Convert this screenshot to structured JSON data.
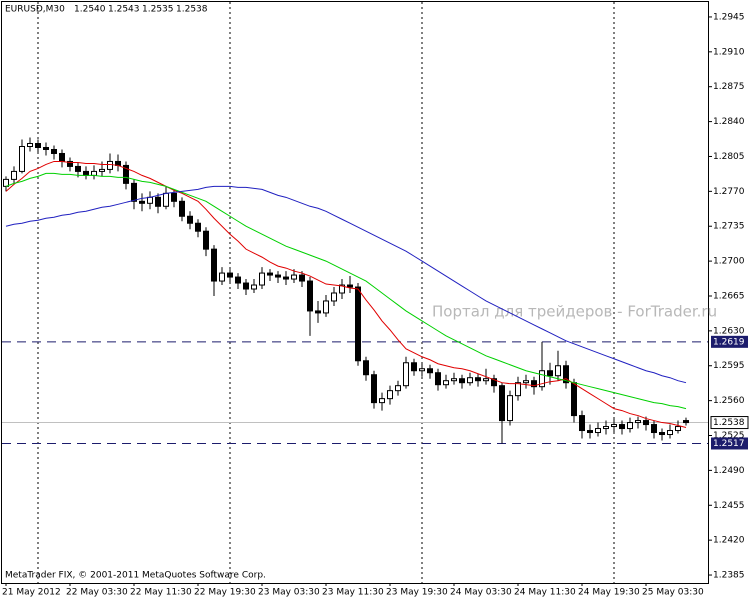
{
  "header": {
    "symbol": "EURUSD,M30",
    "ohlc": [
      "1.2540",
      "1.2543",
      "1.2535",
      "1.2538"
    ]
  },
  "watermark": "Портал для трейдеров - ForTrader.ru",
  "copyright": "MetaTrader FIX, © 2001-2011 MetaQuotes Software Corp.",
  "chart_data": {
    "type": "candlestick",
    "categories": [
      "21 May 2012",
      null,
      null,
      null,
      null,
      null,
      null,
      null,
      "22 May 03:30",
      null,
      null,
      null,
      null,
      null,
      null,
      null,
      "22 May 11:30",
      null,
      null,
      null,
      null,
      null,
      null,
      null,
      "22 May 19:30",
      null,
      null,
      null,
      null,
      null,
      null,
      null,
      "23 May 03:30",
      null,
      null,
      null,
      null,
      null,
      null,
      null,
      "23 May 11:30",
      null,
      null,
      null,
      null,
      null,
      null,
      null,
      "23 May 19:30",
      null,
      null,
      null,
      null,
      null,
      null,
      null,
      "24 May 03:30",
      null,
      null,
      null,
      null,
      null,
      null,
      null,
      "24 May 11:30",
      null,
      null,
      null,
      null,
      null,
      null,
      null,
      "24 May 19:30",
      null,
      null,
      null,
      null,
      null,
      null,
      null,
      "25 May 03:30",
      null,
      null,
      null,
      null,
      null
    ],
    "open": [
      1.2775,
      1.2782,
      1.279,
      1.2815,
      1.2818,
      1.2814,
      1.2812,
      1.2808,
      1.28,
      1.2795,
      1.279,
      1.2786,
      1.279,
      1.2792,
      1.28,
      1.2796,
      1.2778,
      1.276,
      1.2758,
      1.2764,
      1.2755,
      1.2768,
      1.276,
      1.2745,
      1.2738,
      1.273,
      1.2712,
      1.268,
      1.2688,
      1.2684,
      1.2678,
      1.2672,
      1.2676,
      1.2688,
      1.2686,
      1.2684,
      1.2682,
      1.2686,
      1.268,
      1.265,
      1.2648,
      1.266,
      1.2668,
      1.2676,
      1.2674,
      1.26,
      1.2586,
      1.2558,
      1.2562,
      1.257,
      1.2575,
      1.2598,
      1.259,
      1.2592,
      1.2588,
      1.2576,
      1.258,
      1.2582,
      1.2578,
      1.2583,
      1.258,
      1.2582,
      1.2575,
      1.254,
      1.2565,
      1.2578,
      1.258,
      1.2574,
      1.259,
      1.2585,
      1.2595,
      1.2578,
      1.2545,
      1.253,
      1.2528,
      1.2532,
      1.2534,
      1.2536,
      1.2532,
      1.2538,
      1.254,
      1.2536,
      1.2528,
      1.2526,
      1.253,
      1.254
    ],
    "high": [
      1.2785,
      1.2795,
      1.2822,
      1.2824,
      1.2822,
      1.2819,
      1.2816,
      1.2812,
      1.2804,
      1.2799,
      1.2795,
      1.2796,
      1.28,
      1.2808,
      1.2807,
      1.28,
      1.2782,
      1.2768,
      1.277,
      1.2768,
      1.2775,
      1.2772,
      1.2764,
      1.275,
      1.2742,
      1.2734,
      1.2716,
      1.2694,
      1.2692,
      1.2688,
      1.2682,
      1.2682,
      1.2694,
      1.2692,
      1.269,
      1.269,
      1.2692,
      1.269,
      1.2684,
      1.266,
      1.2666,
      1.2674,
      1.2682,
      1.2685,
      1.2678,
      1.2604,
      1.259,
      1.2568,
      1.2575,
      1.258,
      1.2604,
      1.2602,
      1.2598,
      1.2596,
      1.2592,
      1.2586,
      1.2588,
      1.2586,
      1.2588,
      1.2587,
      1.2592,
      1.2586,
      1.2578,
      1.257,
      1.2584,
      1.2586,
      1.2584,
      1.2619,
      1.2598,
      1.261,
      1.26,
      1.2582,
      1.255,
      1.2536,
      1.2538,
      1.254,
      1.2542,
      1.254,
      1.2543,
      1.2544,
      1.2544,
      1.254,
      1.2532,
      1.2536,
      1.254,
      1.2543
    ],
    "low": [
      1.277,
      1.2778,
      1.2788,
      1.281,
      1.2808,
      1.2806,
      1.2802,
      1.2794,
      1.279,
      1.2784,
      1.2782,
      1.2782,
      1.2785,
      1.2788,
      1.279,
      1.2772,
      1.2752,
      1.275,
      1.2752,
      1.2748,
      1.2752,
      1.2754,
      1.274,
      1.2732,
      1.2724,
      1.2705,
      1.2665,
      1.2676,
      1.2678,
      1.2672,
      1.2666,
      1.2668,
      1.2672,
      1.268,
      1.2678,
      1.2676,
      1.2678,
      1.2674,
      1.2625,
      1.2638,
      1.2644,
      1.2655,
      1.2662,
      1.2668,
      1.2595,
      1.258,
      1.2552,
      1.255,
      1.2556,
      1.2565,
      1.2572,
      1.2585,
      1.2584,
      1.2582,
      1.257,
      1.2572,
      1.2576,
      1.2572,
      1.2575,
      1.2574,
      1.2576,
      1.2568,
      1.2517,
      1.2535,
      1.256,
      1.2572,
      1.2566,
      1.257,
      1.2576,
      1.258,
      1.2572,
      1.2538,
      1.2522,
      1.2522,
      1.2524,
      1.2526,
      1.2528,
      1.2526,
      1.2528,
      1.2532,
      1.253,
      1.2522,
      1.252,
      1.2522,
      1.2527,
      1.2535
    ],
    "close": [
      1.2782,
      1.279,
      1.2815,
      1.2818,
      1.2814,
      1.2812,
      1.2808,
      1.28,
      1.2795,
      1.279,
      1.2786,
      1.279,
      1.2792,
      1.28,
      1.2796,
      1.2778,
      1.276,
      1.2758,
      1.2764,
      1.2755,
      1.2768,
      1.276,
      1.2745,
      1.2738,
      1.273,
      1.2712,
      1.268,
      1.2688,
      1.2684,
      1.2678,
      1.2672,
      1.2676,
      1.2688,
      1.2686,
      1.2684,
      1.2682,
      1.2686,
      1.268,
      1.265,
      1.2648,
      1.266,
      1.2668,
      1.2676,
      1.2674,
      1.26,
      1.2586,
      1.2558,
      1.2562,
      1.257,
      1.2575,
      1.2598,
      1.259,
      1.2592,
      1.2588,
      1.2576,
      1.258,
      1.2582,
      1.2578,
      1.2583,
      1.258,
      1.2582,
      1.2575,
      1.254,
      1.2565,
      1.2578,
      1.258,
      1.2574,
      1.259,
      1.2585,
      1.2595,
      1.2578,
      1.2545,
      1.253,
      1.2528,
      1.2532,
      1.2534,
      1.2536,
      1.2532,
      1.2538,
      1.254,
      1.2536,
      1.2528,
      1.2526,
      1.253,
      1.2534,
      1.2538
    ],
    "series": [
      {
        "color": "#e00000",
        "values": [
          1.277,
          1.2777,
          1.2783,
          1.279,
          1.2793,
          1.2797,
          1.28,
          1.28,
          1.2799,
          1.2799,
          1.2798,
          1.2798,
          1.2797,
          1.2797,
          1.2796,
          1.2793,
          1.279,
          1.2786,
          1.2783,
          1.2779,
          1.2775,
          1.2771,
          1.2768,
          1.2764,
          1.276,
          1.2752,
          1.2743,
          1.2735,
          1.2727,
          1.272,
          1.2712,
          1.2708,
          1.2704,
          1.2699,
          1.2695,
          1.2693,
          1.269,
          1.2688,
          1.2685,
          1.2681,
          1.2677,
          1.2676,
          1.2675,
          1.2673,
          1.2672,
          1.2661,
          1.2651,
          1.264,
          1.2631,
          1.2621,
          1.2612,
          1.2608,
          1.2604,
          1.2601,
          1.2597,
          1.2595,
          1.2593,
          1.2592,
          1.259,
          1.2587,
          1.2584,
          1.2581,
          1.2578,
          1.2577,
          1.2577,
          1.2576,
          1.2575,
          1.2577,
          1.2579,
          1.258,
          1.2582,
          1.2577,
          1.2572,
          1.2567,
          1.2562,
          1.2557,
          1.2552,
          1.255,
          1.2547,
          1.2545,
          1.2542,
          1.254,
          1.2538,
          1.2537,
          1.2535,
          1.2533
        ]
      },
      {
        "color": "#00d000",
        "values": [
          1.2775,
          1.2778,
          1.278,
          1.2783,
          1.2785,
          1.2788,
          1.2788,
          1.2787,
          1.2787,
          1.2786,
          1.2786,
          1.2786,
          1.2785,
          1.2785,
          1.2784,
          1.2784,
          1.2782,
          1.278,
          1.2779,
          1.2777,
          1.2775,
          1.2772,
          1.2769,
          1.2766,
          1.2763,
          1.276,
          1.2755,
          1.275,
          1.2745,
          1.274,
          1.2735,
          1.2731,
          1.2727,
          1.2723,
          1.2719,
          1.2715,
          1.2712,
          1.2709,
          1.2706,
          1.2703,
          1.27,
          1.2696,
          1.2692,
          1.2688,
          1.2684,
          1.268,
          1.2674,
          1.2668,
          1.2662,
          1.2656,
          1.265,
          1.2645,
          1.264,
          1.2635,
          1.263,
          1.2625,
          1.2621,
          1.2617,
          1.2613,
          1.2609,
          1.2605,
          1.2602,
          1.2599,
          1.2596,
          1.2593,
          1.259,
          1.2588,
          1.2586,
          1.2584,
          1.2582,
          1.258,
          1.2578,
          1.2576,
          1.2574,
          1.2572,
          1.257,
          1.2568,
          1.2566,
          1.2564,
          1.2562,
          1.256,
          1.2558,
          1.2557,
          1.2555,
          1.2554,
          1.2552
        ]
      },
      {
        "color": "#2020c0",
        "values": [
          1.2735,
          1.2737,
          1.2738,
          1.274,
          1.2741,
          1.2743,
          1.2744,
          1.2746,
          1.2747,
          1.2749,
          1.275,
          1.2752,
          1.2754,
          1.2755,
          1.2757,
          1.2759,
          1.2761,
          1.2763,
          1.2764,
          1.2766,
          1.2768,
          1.2769,
          1.277,
          1.2771,
          1.2772,
          1.2774,
          1.2775,
          1.2775,
          1.2775,
          1.2774,
          1.2774,
          1.2773,
          1.2772,
          1.2769,
          1.2766,
          1.2764,
          1.2761,
          1.2758,
          1.2755,
          1.2753,
          1.275,
          1.2746,
          1.2742,
          1.2738,
          1.2734,
          1.273,
          1.2726,
          1.2722,
          1.2718,
          1.2714,
          1.271,
          1.2705,
          1.27,
          1.2695,
          1.269,
          1.2685,
          1.268,
          1.2675,
          1.267,
          1.2665,
          1.266,
          1.2656,
          1.2652,
          1.2648,
          1.2644,
          1.264,
          1.2636,
          1.2632,
          1.2628,
          1.2624,
          1.262,
          1.2617,
          1.2614,
          1.2611,
          1.2608,
          1.2605,
          1.2602,
          1.2599,
          1.2596,
          1.2593,
          1.259,
          1.2588,
          1.2585,
          1.2583,
          1.258,
          1.2578
        ]
      }
    ],
    "ylim": [
      1.2377,
      1.296
    ],
    "yticks": [
      1.2945,
      {
        "value": 1.291,
        "label": "1.2910"
      },
      1.2875,
      {
        "value": 1.284,
        "label": "1.2840"
      },
      1.2805,
      {
        "value": 1.277,
        "label": "1.2770"
      },
      1.2735,
      {
        "value": 1.27,
        "label": "1.2700"
      },
      1.2665,
      {
        "value": 1.263,
        "label": "1.2630"
      },
      1.2595,
      {
        "value": 1.256,
        "label": "1.2560"
      },
      1.2525,
      {
        "value": 1.249,
        "label": "1.2490"
      },
      1.2455,
      {
        "value": 1.242,
        "label": "1.2420"
      },
      1.2385
    ],
    "hlines": [
      {
        "value": 1.2619,
        "label": "1.2619"
      },
      {
        "value": 1.2517,
        "label": "1.2517"
      }
    ],
    "bid": {
      "value": 1.2538,
      "label": "1.2538"
    },
    "grid": false
  }
}
